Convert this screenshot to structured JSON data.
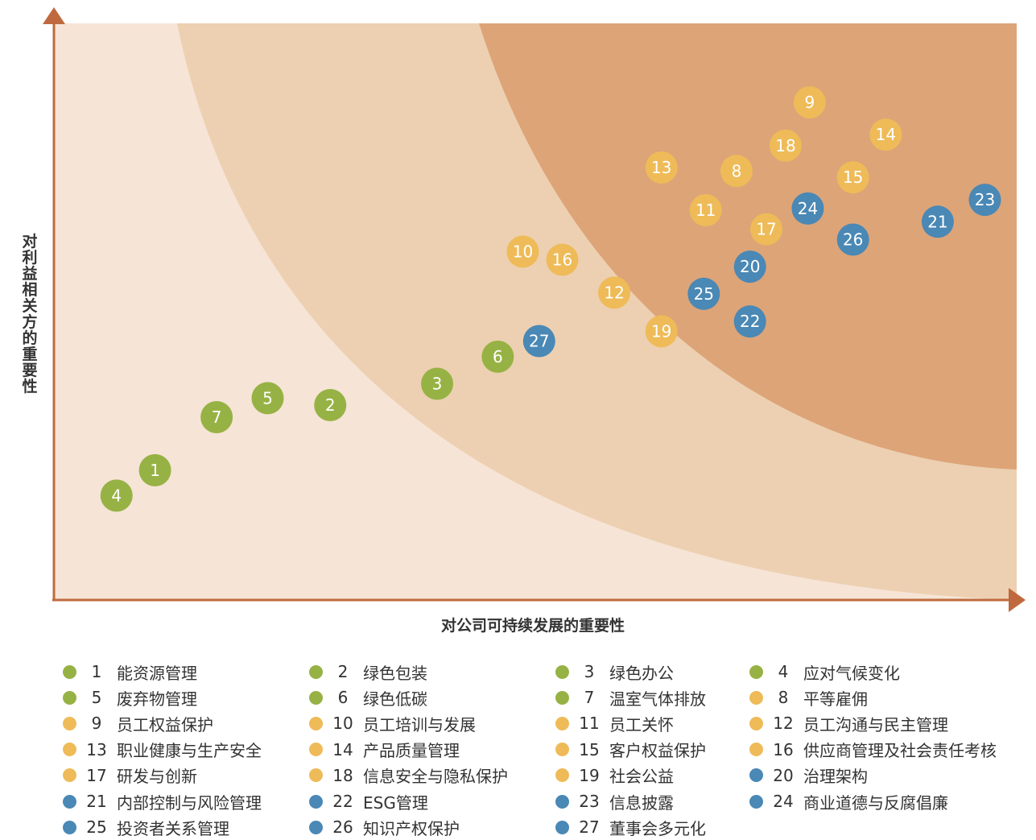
{
  "colors": {
    "green": "#97B244",
    "yellow": "#EEBB58",
    "blue": "#4A88B5",
    "axis": "#BF6A3E",
    "zone_low": "#F6E4D6",
    "zone_mid": "#EDD0B2",
    "zone_high": "#DDA478",
    "text_on_point": "#ffffff"
  },
  "chart_data": {
    "type": "scatter",
    "xlabel": "对公司可持续发展的重要性",
    "ylabel": "对利益相关方的重要性",
    "xlim": [
      0,
      100
    ],
    "ylim": [
      0,
      100
    ],
    "grid": false,
    "points": [
      {
        "id": "1",
        "x": 10.5,
        "y": 22.5,
        "group": "green"
      },
      {
        "id": "2",
        "x": 28.7,
        "y": 33.8,
        "group": "green"
      },
      {
        "id": "3",
        "x": 39.8,
        "y": 37.5,
        "group": "green"
      },
      {
        "id": "4",
        "x": 6.5,
        "y": 18.1,
        "group": "green"
      },
      {
        "id": "5",
        "x": 22.2,
        "y": 35.0,
        "group": "green"
      },
      {
        "id": "6",
        "x": 46.1,
        "y": 42.2,
        "group": "green"
      },
      {
        "id": "7",
        "x": 16.9,
        "y": 31.7,
        "group": "green"
      },
      {
        "id": "8",
        "x": 70.9,
        "y": 74.4,
        "group": "yellow"
      },
      {
        "id": "9",
        "x": 78.5,
        "y": 86.3,
        "group": "yellow"
      },
      {
        "id": "10",
        "x": 48.7,
        "y": 60.4,
        "group": "yellow"
      },
      {
        "id": "11",
        "x": 67.7,
        "y": 67.6,
        "group": "yellow"
      },
      {
        "id": "12",
        "x": 58.2,
        "y": 53.3,
        "group": "yellow"
      },
      {
        "id": "13",
        "x": 63.1,
        "y": 75.0,
        "group": "yellow"
      },
      {
        "id": "14",
        "x": 86.4,
        "y": 80.7,
        "group": "yellow"
      },
      {
        "id": "15",
        "x": 83.0,
        "y": 73.3,
        "group": "yellow"
      },
      {
        "id": "16",
        "x": 52.8,
        "y": 59.0,
        "group": "yellow"
      },
      {
        "id": "17",
        "x": 74.0,
        "y": 64.3,
        "group": "yellow"
      },
      {
        "id": "18",
        "x": 76.0,
        "y": 78.8,
        "group": "yellow"
      },
      {
        "id": "19",
        "x": 63.1,
        "y": 46.6,
        "group": "yellow"
      },
      {
        "id": "20",
        "x": 72.3,
        "y": 57.8,
        "group": "blue"
      },
      {
        "id": "21",
        "x": 91.8,
        "y": 65.6,
        "group": "blue"
      },
      {
        "id": "22",
        "x": 72.3,
        "y": 48.3,
        "group": "blue"
      },
      {
        "id": "23",
        "x": 96.7,
        "y": 69.4,
        "group": "blue"
      },
      {
        "id": "24",
        "x": 78.3,
        "y": 67.9,
        "group": "blue"
      },
      {
        "id": "25",
        "x": 67.5,
        "y": 53.1,
        "group": "blue"
      },
      {
        "id": "26",
        "x": 83.0,
        "y": 62.5,
        "group": "blue"
      },
      {
        "id": "27",
        "x": 50.4,
        "y": 44.9,
        "group": "blue"
      }
    ]
  },
  "legend": [
    {
      "num": "1",
      "name": "能资源管理",
      "group": "green"
    },
    {
      "num": "2",
      "name": "绿色包装",
      "group": "green"
    },
    {
      "num": "3",
      "name": "绿色办公",
      "group": "green"
    },
    {
      "num": "4",
      "name": "应对气候变化",
      "group": "green"
    },
    {
      "num": "5",
      "name": "废弃物管理",
      "group": "green"
    },
    {
      "num": "6",
      "name": "绿色低碳",
      "group": "green"
    },
    {
      "num": "7",
      "name": "温室气体排放",
      "group": "green"
    },
    {
      "num": "8",
      "name": "平等雇佣",
      "group": "yellow"
    },
    {
      "num": "9",
      "name": "员工权益保护",
      "group": "yellow"
    },
    {
      "num": "10",
      "name": "员工培训与发展",
      "group": "yellow"
    },
    {
      "num": "11",
      "name": "员工关怀",
      "group": "yellow"
    },
    {
      "num": "12",
      "name": "员工沟通与民主管理",
      "group": "yellow"
    },
    {
      "num": "13",
      "name": "职业健康与生产安全",
      "group": "yellow"
    },
    {
      "num": "14",
      "name": "产品质量管理",
      "group": "yellow"
    },
    {
      "num": "15",
      "name": "客户权益保护",
      "group": "yellow"
    },
    {
      "num": "16",
      "name": "供应商管理及社会责任考核",
      "group": "yellow"
    },
    {
      "num": "17",
      "name": "研发与创新",
      "group": "yellow"
    },
    {
      "num": "18",
      "name": "信息安全与隐私保护",
      "group": "yellow"
    },
    {
      "num": "19",
      "name": "社会公益",
      "group": "yellow"
    },
    {
      "num": "20",
      "name": "治理架构",
      "group": "blue"
    },
    {
      "num": "21",
      "name": "内部控制与风险管理",
      "group": "blue"
    },
    {
      "num": "22",
      "name": "ESG管理",
      "group": "blue"
    },
    {
      "num": "23",
      "name": "信息披露",
      "group": "blue"
    },
    {
      "num": "24",
      "name": "商业道德与反腐倡廉",
      "group": "blue"
    },
    {
      "num": "25",
      "name": "投资者关系管理",
      "group": "blue"
    },
    {
      "num": "26",
      "name": "知识产权保护",
      "group": "blue"
    },
    {
      "num": "27",
      "name": "董事会多元化",
      "group": "blue"
    }
  ]
}
